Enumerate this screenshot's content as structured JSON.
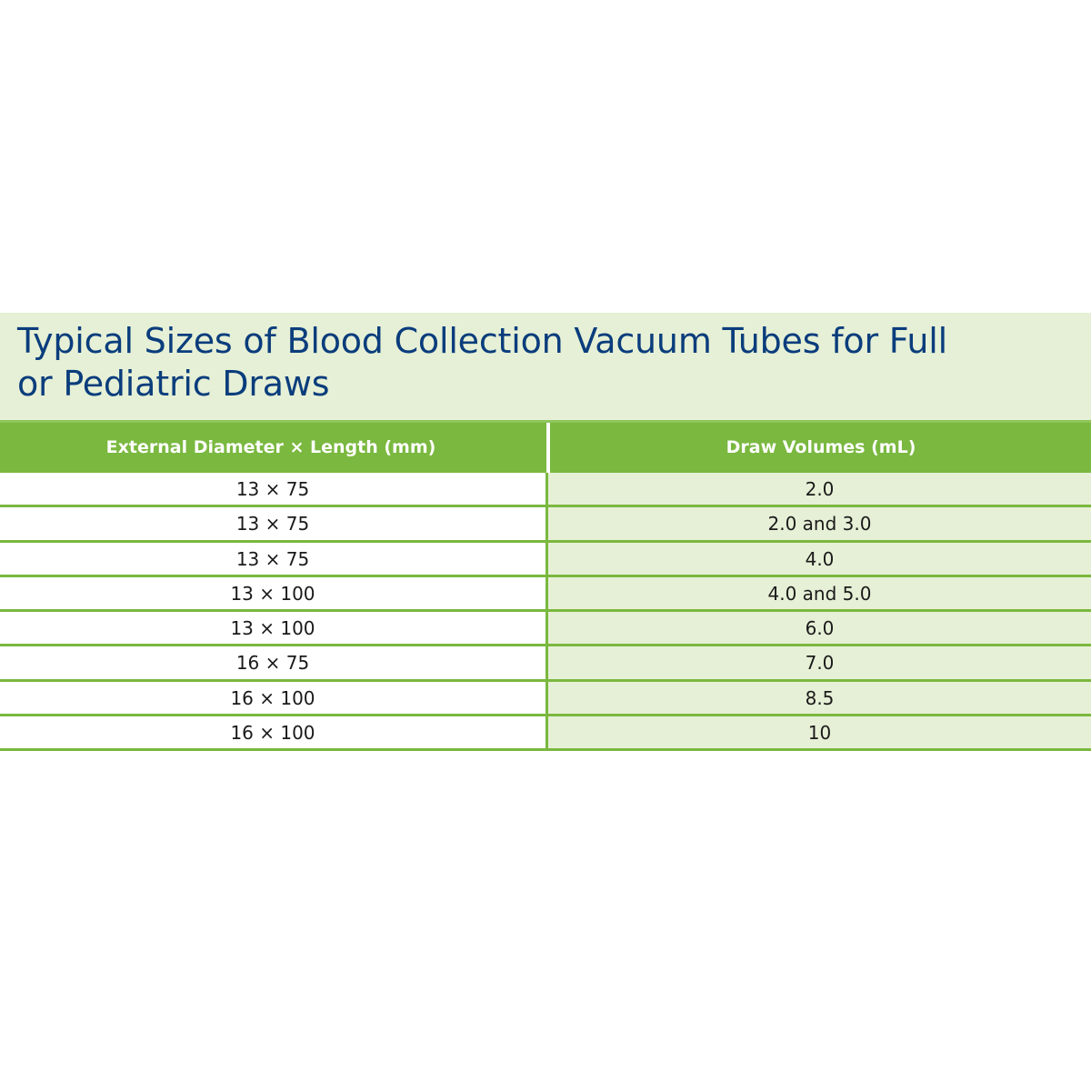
{
  "title": {
    "line1": "Typical Sizes of Blood Collection Vacuum Tubes for Full",
    "line2": "or Pediatric Draws"
  },
  "colors": {
    "title_text": "#0a3d7c",
    "title_band": "#e6f0d6",
    "header_bg": "#7ab83f",
    "row_line": "#7ab83f",
    "alt_cell_bg": "#e6f0d6"
  },
  "table": {
    "headers": [
      "External Diameter × Length (mm)",
      "Draw Volumes (mL)"
    ],
    "rows": [
      [
        "13 × 75",
        "2.0"
      ],
      [
        "13 × 75",
        "2.0 and 3.0"
      ],
      [
        "13 × 75",
        "4.0"
      ],
      [
        "13 × 100",
        "4.0 and 5.0"
      ],
      [
        "13 × 100",
        "6.0"
      ],
      [
        "16 × 75",
        "7.0"
      ],
      [
        "16 × 100",
        "8.5"
      ],
      [
        "16 × 100",
        "10"
      ]
    ]
  }
}
